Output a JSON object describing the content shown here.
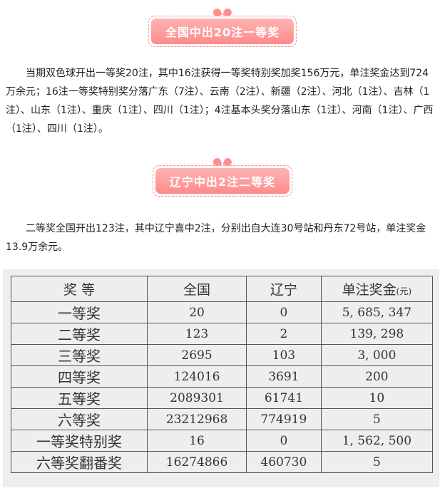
{
  "banner1": "全国中出20注一等奖",
  "para1": "当期双色球开出一等奖20注，其中16注获得一等奖特别奖加奖156万元，单注奖金达到724万余元；16注一等奖特别奖分落广东（7注）、云南（2注）、新疆（2注）、河北（1注）、吉林（1注）、山东（1注）、重庆（1注）、四川（1注）；4注基本头奖分落山东（1注）、河南（1注）、广西（1注）、四川（1注）。",
  "banner2": "辽宁中出2注二等奖",
  "para2": "二等奖全国开出123注，其中辽宁喜中2注，分别出自大连30号站和丹东72号站，单注奖金13.9万余元。",
  "table": {
    "headers": [
      "奖 等",
      "全国",
      "辽宁",
      "单注奖金",
      "(元)"
    ],
    "rows": [
      [
        "一等奖",
        "20",
        "0",
        "5, 685, 347"
      ],
      [
        "二等奖",
        "123",
        "2",
        "139, 298"
      ],
      [
        "三等奖",
        "2695",
        "103",
        "3, 000"
      ],
      [
        "四等奖",
        "124016",
        "3691",
        "200"
      ],
      [
        "五等奖",
        "2089301",
        "61741",
        "10"
      ],
      [
        "六等奖",
        "23212968",
        "774919",
        "5"
      ],
      [
        "一等奖特别奖",
        "16",
        "0",
        "1, 562, 500"
      ],
      [
        "六等奖翻番奖",
        "16274866",
        "460730",
        "5"
      ]
    ]
  }
}
